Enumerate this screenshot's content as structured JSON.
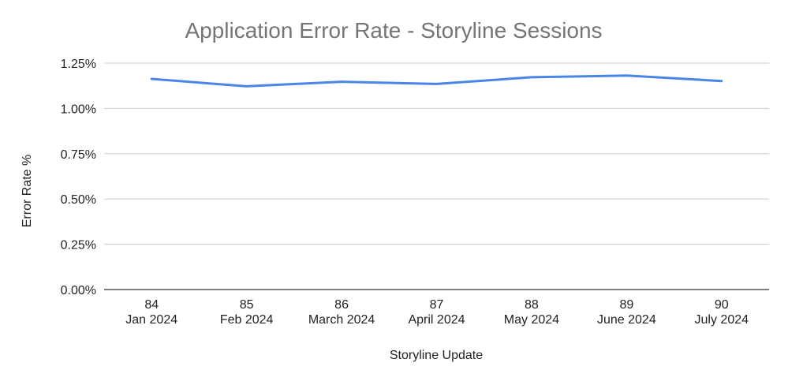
{
  "chart_data": {
    "type": "line",
    "title": "Application Error Rate - Storyline Sessions",
    "xlabel": "Storyline Update",
    "ylabel": "Error Rate %",
    "categories": [
      {
        "update": "84",
        "month": "Jan 2024"
      },
      {
        "update": "85",
        "month": "Feb 2024"
      },
      {
        "update": "86",
        "month": "March 2024"
      },
      {
        "update": "87",
        "month": "April 2024"
      },
      {
        "update": "88",
        "month": "May 2024"
      },
      {
        "update": "89",
        "month": "June 2024"
      },
      {
        "update": "90",
        "month": "July 2024"
      }
    ],
    "series": [
      {
        "values": [
          1.163,
          1.122,
          1.147,
          1.135,
          1.172,
          1.181,
          1.151
        ],
        "color": "#4a86e8"
      }
    ],
    "ylim": [
      0,
      1.25
    ],
    "yticks": [
      0,
      0.25,
      0.5,
      0.75,
      1.0,
      1.25
    ],
    "ytick_labels": [
      "0.00%",
      "0.25%",
      "0.50%",
      "0.75%",
      "1.00%",
      "1.25%"
    ],
    "grid": true,
    "legend": "none",
    "gridline_color": "#cccccc",
    "axis_color": "#333333"
  }
}
